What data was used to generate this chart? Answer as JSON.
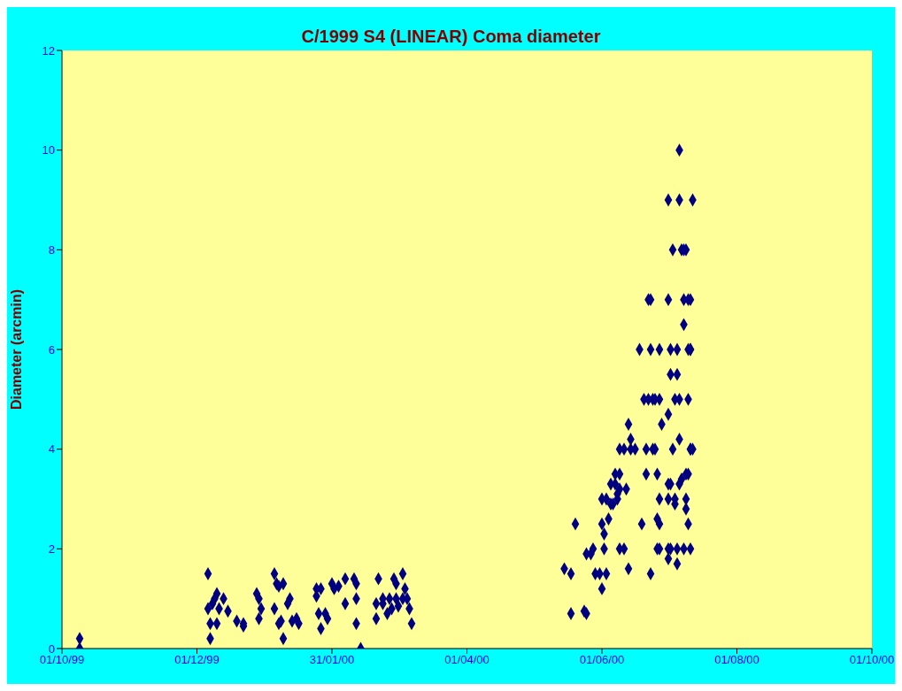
{
  "chart_data": {
    "type": "scatter",
    "title": "C/1999 S4 (LINEAR) Coma diameter",
    "ylabel": "Diameter (arcmin)",
    "x": [
      "1999-10-09",
      "1999-10-09",
      "1999-12-06",
      "1999-12-06",
      "1999-12-07",
      "1999-12-07",
      "1999-12-08",
      "1999-12-09",
      "1999-12-10",
      "1999-12-10",
      "1999-12-11",
      "1999-12-13",
      "1999-12-15",
      "1999-12-19",
      "1999-12-22",
      "1999-12-22",
      "1999-12-28",
      "1999-12-29",
      "1999-12-29",
      "1999-12-30",
      "2000-01-05",
      "2000-01-05",
      "2000-01-06",
      "2000-01-07",
      "2000-01-09",
      "2000-01-07",
      "2000-01-08",
      "2000-01-09",
      "2000-01-11",
      "2000-01-12",
      "2000-01-13",
      "2000-01-15",
      "2000-01-16",
      "2000-01-24",
      "2000-01-24",
      "2000-01-26",
      "2000-01-25",
      "2000-01-26",
      "2000-01-28",
      "2000-01-29",
      "2000-01-31",
      "2000-02-01",
      "2000-02-03",
      "2000-02-06",
      "2000-02-06",
      "2000-02-10",
      "2000-02-11",
      "2000-02-11",
      "2000-02-11",
      "2000-02-13",
      "2000-02-20",
      "2000-02-20",
      "2000-02-21",
      "2000-02-23",
      "2000-02-23",
      "2000-02-25",
      "2000-02-26",
      "2000-02-27",
      "2000-02-28",
      "2000-02-29",
      "2000-02-29",
      "2000-03-01",
      "2000-03-03",
      "2000-03-03",
      "2000-03-04",
      "2000-03-05",
      "2000-03-06",
      "2000-03-07",
      "2000-05-15",
      "2000-05-18",
      "2000-05-18",
      "2000-05-20",
      "2000-05-24",
      "2000-05-25",
      "2000-05-25",
      "2000-05-27",
      "2000-05-28",
      "2000-05-29",
      "2000-05-31",
      "2000-06-01",
      "2000-06-01",
      "2000-06-01",
      "2000-06-02",
      "2000-06-02",
      "2000-06-03",
      "2000-06-03",
      "2000-06-04",
      "2000-06-05",
      "2000-06-05",
      "2000-06-06",
      "2000-06-07",
      "2000-06-07",
      "2000-06-08",
      "2000-06-09",
      "2000-06-08",
      "2000-06-09",
      "2000-06-09",
      "2000-06-09",
      "2000-06-11",
      "2000-06-11",
      "2000-06-12",
      "2000-06-13",
      "2000-06-13",
      "2000-06-14",
      "2000-06-14",
      "2000-06-16",
      "2000-06-18",
      "2000-06-19",
      "2000-06-21",
      "2000-06-21",
      "2000-06-22",
      "2000-06-23",
      "2000-06-23",
      "2000-06-23",
      "2000-06-24",
      "2000-06-24",
      "2000-06-25",
      "2000-06-26",
      "2000-06-26",
      "2000-06-26",
      "2000-06-27",
      "2000-06-27",
      "2000-06-27",
      "2000-06-28",
      "2000-07-01",
      "2000-07-01",
      "2000-07-01",
      "2000-07-01",
      "2000-07-01",
      "2000-07-02",
      "2000-07-01",
      "2000-07-01",
      "2000-07-02",
      "2000-07-02",
      "2000-07-02",
      "2000-07-03",
      "2000-07-03",
      "2000-07-04",
      "2000-07-04",
      "2000-07-05",
      "2000-07-05",
      "2000-07-05",
      "2000-07-06",
      "2000-07-06",
      "2000-07-05",
      "2000-07-06",
      "2000-07-06",
      "2000-07-06",
      "2000-07-07",
      "2000-07-07",
      "2000-07-08",
      "2000-07-09",
      "2000-07-08",
      "2000-07-08",
      "2000-07-08",
      "2000-07-09",
      "2000-07-09",
      "2000-07-09",
      "2000-07-10",
      "2000-07-10",
      "2000-07-10",
      "2000-07-10",
      "2000-07-11",
      "2000-07-11",
      "2000-07-11",
      "2000-07-11",
      "2000-07-12",
      "2000-07-12",
      "2000-07-11",
      "2000-07-11",
      "2000-07-10",
      "2000-06-20",
      "2000-06-22",
      "2000-06-25",
      "2000-07-04",
      "2000-06-27",
      "2000-06-27"
    ],
    "values": [
      0.2,
      0,
      1.5,
      0.8,
      0.2,
      0.5,
      0.9,
      1.0,
      1.1,
      0.5,
      0.8,
      1.0,
      0.75,
      0.55,
      0.5,
      0.45,
      1.1,
      1.0,
      0.6,
      0.8,
      0.8,
      1.5,
      1.3,
      1.25,
      1.3,
      0.5,
      0.55,
      0.2,
      0.9,
      1.0,
      0.55,
      0.6,
      0.5,
      1.05,
      1.2,
      1.2,
      0.7,
      0.4,
      0.7,
      0.6,
      1.3,
      1.2,
      1.25,
      1.4,
      0.9,
      1.4,
      1.3,
      1.0,
      0.5,
      0,
      0.6,
      0.9,
      1.4,
      0.9,
      1.0,
      0.7,
      1.0,
      0.8,
      1.4,
      1.3,
      1.0,
      0.85,
      1.5,
      1.0,
      1.2,
      1.0,
      0.8,
      0.5,
      1.6,
      0.7,
      1.5,
      2.5,
      0.75,
      0.7,
      1.9,
      1.9,
      2.0,
      1.5,
      1.5,
      3.0,
      2.5,
      1.2,
      2.3,
      2.0,
      3.0,
      1.5,
      2.6,
      2.9,
      3.3,
      2.9,
      3.5,
      3.3,
      3.1,
      3.2,
      3.0,
      3.5,
      2.0,
      4.0,
      4.0,
      2.0,
      3.2,
      4.5,
      1.6,
      4.2,
      4.0,
      4.0,
      6.0,
      2.5,
      3.5,
      4.0,
      7.0,
      1.5,
      6.0,
      7.0,
      5.0,
      4.0,
      4.0,
      3.5,
      2.0,
      2.6,
      2.5,
      5.0,
      6.0,
      4.5,
      3.0,
      9.0,
      4.7,
      2.0,
      7.0,
      5.5,
      3.3,
      1.8,
      6.0,
      3.3,
      2.0,
      8.0,
      4.0,
      2.9,
      3.0,
      1.7,
      5.5,
      2.0,
      10.0,
      9.0,
      6.0,
      5.0,
      4.2,
      3.3,
      3.4,
      8.0,
      8.0,
      8.0,
      7.0,
      6.5,
      2.0,
      2.8,
      3.0,
      3.5,
      5.0,
      6.0,
      7.0,
      3.5,
      4.0,
      6.0,
      7.0,
      2.0,
      4.0,
      9.0,
      4.0,
      6.0,
      2.5,
      5.0,
      5.0,
      5.0,
      5.0,
      3.0,
      2.0
    ],
    "color": "#000080",
    "marker": "diamond",
    "grid": false,
    "legend": false,
    "xlim": [
      "1999-10-01",
      "2000-10-01"
    ],
    "xticks": [
      {
        "value": "1999-10-01",
        "label": "01/10/99"
      },
      {
        "value": "1999-12-01",
        "label": "01/12/99"
      },
      {
        "value": "2000-01-31",
        "label": "31/01/00"
      },
      {
        "value": "2000-04-01",
        "label": "01/04/00"
      },
      {
        "value": "2000-06-01",
        "label": "01/06/00"
      },
      {
        "value": "2000-08-01",
        "label": "01/08/00"
      },
      {
        "value": "2000-10-01",
        "label": "01/10/00"
      }
    ],
    "ylim": [
      0,
      12
    ],
    "yticks": [
      0,
      2,
      4,
      6,
      8,
      10,
      12
    ]
  }
}
